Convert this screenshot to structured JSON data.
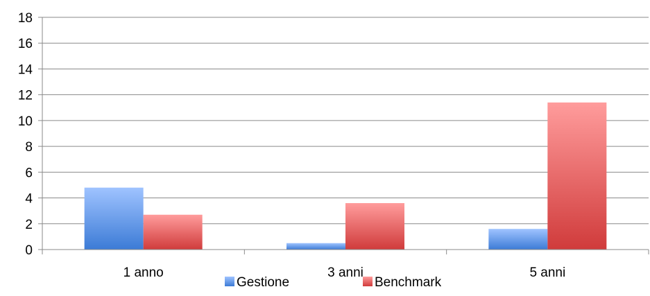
{
  "chart_data": {
    "type": "bar",
    "categories": [
      "1 anno",
      "3 anni",
      "5 anni"
    ],
    "series": [
      {
        "name": "Gestione",
        "values": [
          4.8,
          0.5,
          1.6
        ],
        "color": "#5b8ee6"
      },
      {
        "name": "Benchmark",
        "values": [
          2.7,
          3.6,
          11.4
        ],
        "color": "#e36565"
      }
    ],
    "title": "",
    "xlabel": "",
    "ylabel": "",
    "ylim": [
      0,
      18
    ],
    "yticks": [
      0,
      2,
      4,
      6,
      8,
      10,
      12,
      14,
      16,
      18
    ],
    "grid": true,
    "legend_position": "bottom"
  }
}
